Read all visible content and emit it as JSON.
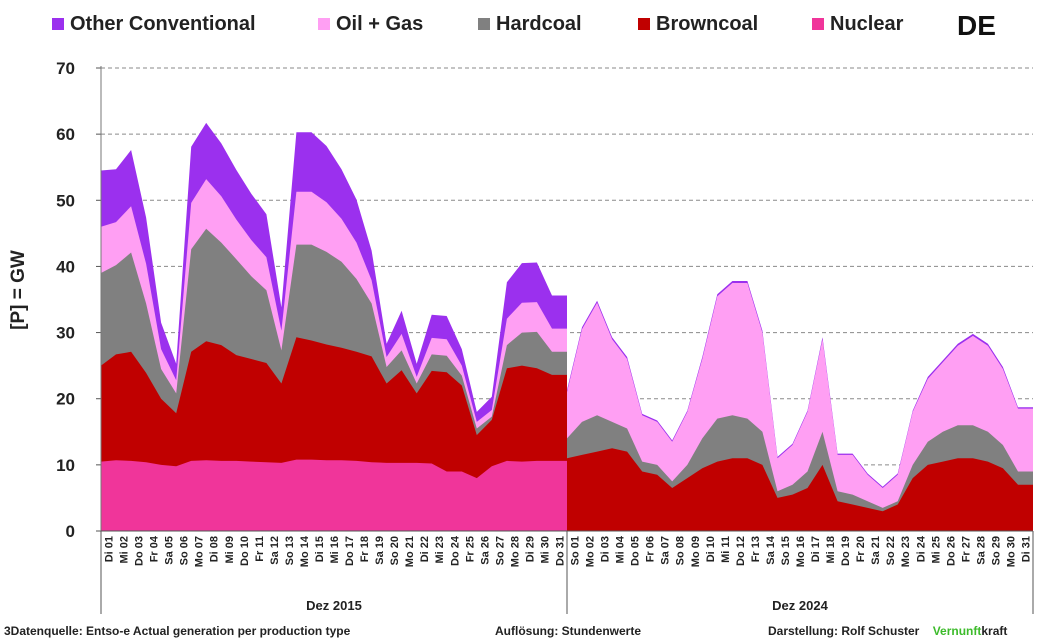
{
  "region": "DE",
  "footer": {
    "source": "3Datenquelle: Entso-e  Actual generation per production type",
    "resolution": "Auflösung: Stundenwerte",
    "credit_prefix": "Darstellung:  Rolf Schuster",
    "brand_green": "Vernunft",
    "brand_black": "kraft"
  },
  "chart_data": {
    "type": "area",
    "stacked": true,
    "title": "",
    "xlabel": "",
    "ylabel": "[P] =  GW",
    "ylim": [
      0,
      70
    ],
    "yticks": [
      0,
      10,
      20,
      30,
      40,
      50,
      60,
      70
    ],
    "grid": "horizontal dashed",
    "legend_position": "top",
    "groups": [
      {
        "label": "Dez 2015",
        "days": [
          "Di 01",
          "Mi 02",
          "Do 03",
          "Fr 04",
          "Sa 05",
          "So 06",
          "Mo 07",
          "Di 08",
          "Mi 09",
          "Do 10",
          "Fr 11",
          "Sa 12",
          "So 13",
          "Mo 14",
          "Di 15",
          "Mi 16",
          "Do 17",
          "Fr 18",
          "Sa 19",
          "So 20",
          "Mo 21",
          "Di 22",
          "Mi 23",
          "Do 24",
          "Fr 25",
          "Sa 26",
          "So 27",
          "Mo 28",
          "Di 29",
          "Mi 30",
          "Do 31"
        ],
        "series": [
          {
            "name": "Nuclear",
            "color": "#f0359a",
            "values": [
              10.5,
              10.7,
              10.6,
              10.4,
              10.0,
              9.8,
              10.6,
              10.7,
              10.6,
              10.6,
              10.5,
              10.4,
              10.3,
              10.8,
              10.8,
              10.7,
              10.7,
              10.6,
              10.4,
              10.3,
              10.3,
              10.3,
              10.2,
              9.0,
              9.0,
              8.0,
              9.8,
              10.6,
              10.5,
              10.6,
              10.6
            ]
          },
          {
            "name": "Browncoal",
            "color": "#c00000",
            "values": [
              14.5,
              16.0,
              16.5,
              13.5,
              10.0,
              8.0,
              16.5,
              18.0,
              17.5,
              16.0,
              15.5,
              15.0,
              12.0,
              18.5,
              18.0,
              17.5,
              17.0,
              16.5,
              16.0,
              12.0,
              14.0,
              10.5,
              14.0,
              15.0,
              13.0,
              6.5,
              7.0,
              14.0,
              14.5,
              14.0,
              13.0
            ]
          },
          {
            "name": "Hardcoal",
            "color": "#808080",
            "values": [
              14.0,
              13.5,
              15.0,
              10.5,
              4.5,
              3.0,
              15.5,
              17.0,
              15.5,
              14.5,
              12.5,
              11.0,
              5.0,
              14.0,
              14.5,
              14.0,
              13.0,
              11.0,
              8.0,
              2.5,
              3.0,
              1.5,
              2.5,
              2.5,
              1.5,
              1.0,
              0.5,
              3.5,
              5.0,
              5.5,
              3.5
            ]
          },
          {
            "name": "Oil + Gas",
            "color": "#ff9ff3",
            "values": [
              7.0,
              6.5,
              7.0,
              6.0,
              3.0,
              2.0,
              7.0,
              7.5,
              7.0,
              6.0,
              5.5,
              5.0,
              3.0,
              8.0,
              8.0,
              7.5,
              6.5,
              5.5,
              3.5,
              1.5,
              2.5,
              1.0,
              2.5,
              2.5,
              1.5,
              1.0,
              1.0,
              4.0,
              4.5,
              4.5,
              3.5
            ]
          },
          {
            "name": "Other Conventional",
            "color": "#9b30ee",
            "values": [
              8.5,
              8.0,
              8.5,
              7.0,
              4.0,
              2.5,
              8.5,
              8.5,
              8.0,
              7.5,
              7.0,
              6.5,
              3.5,
              9.0,
              9.0,
              8.5,
              7.5,
              6.5,
              4.5,
              2.0,
              3.5,
              2.0,
              3.5,
              3.5,
              2.5,
              1.5,
              2.0,
              5.5,
              6.0,
              6.0,
              5.0
            ]
          }
        ]
      },
      {
        "label": "Dez 2024",
        "days": [
          "So 01",
          "Mo 02",
          "Di 03",
          "Mi 04",
          "Do 05",
          "Fr 06",
          "Sa 07",
          "So 08",
          "Mo 09",
          "Di 10",
          "Mi 11",
          "Do 12",
          "Fr 13",
          "Sa 14",
          "So 15",
          "Mo 16",
          "Di 17",
          "Mi 18",
          "Do 19",
          "Fr 20",
          "Sa 21",
          "So 22",
          "Mo 23",
          "Di 24",
          "Mi 25",
          "Do 26",
          "Fr 27",
          "Sa 28",
          "So 29",
          "Mo 30",
          "Di 31"
        ],
        "series": [
          {
            "name": "Nuclear",
            "color": "#f0359a",
            "values": [
              0,
              0,
              0,
              0,
              0,
              0,
              0,
              0,
              0,
              0,
              0,
              0,
              0,
              0,
              0,
              0,
              0,
              0,
              0,
              0,
              0,
              0,
              0,
              0,
              0,
              0,
              0,
              0,
              0,
              0,
              0
            ]
          },
          {
            "name": "Browncoal",
            "color": "#c00000",
            "values": [
              11.0,
              11.5,
              12.0,
              12.5,
              12.0,
              9.0,
              8.5,
              6.5,
              8.0,
              9.5,
              10.5,
              11.0,
              11.0,
              10.0,
              5.0,
              5.5,
              6.5,
              10.0,
              4.5,
              4.0,
              3.5,
              3.0,
              4.0,
              8.0,
              10.0,
              10.5,
              11.0,
              11.0,
              10.5,
              9.5,
              7.0
            ]
          },
          {
            "name": "Hardcoal",
            "color": "#808080",
            "values": [
              3.0,
              5.0,
              5.5,
              4.0,
              3.5,
              1.5,
              1.5,
              1.0,
              2.0,
              4.5,
              6.5,
              6.5,
              6.0,
              5.0,
              1.0,
              1.5,
              2.5,
              5.0,
              1.5,
              1.5,
              1.0,
              0.5,
              0.5,
              2.0,
              3.5,
              4.5,
              5.0,
              5.0,
              4.5,
              3.5,
              2.0
            ]
          },
          {
            "name": "Oil + Gas",
            "color": "#ff9ff3",
            "values": [
              7.0,
              14.0,
              17.0,
              12.5,
              10.5,
              7.0,
              6.5,
              6.0,
              8.0,
              12.0,
              18.5,
              20.0,
              20.5,
              15.0,
              5.0,
              6.0,
              9.0,
              14.0,
              5.5,
              6.0,
              4.0,
              3.0,
              4.0,
              8.0,
              9.5,
              10.5,
              12.0,
              13.5,
              13.0,
              11.5,
              9.5
            ]
          },
          {
            "name": "Other Conventional",
            "color": "#9b30ee",
            "values": [
              0.3,
              0.3,
              0.3,
              0.3,
              0.3,
              0.2,
              0.2,
              0.2,
              0.2,
              0.3,
              0.3,
              0.3,
              0.3,
              0.3,
              0.2,
              0.2,
              0.2,
              0.3,
              0.2,
              0.2,
              0.2,
              0.2,
              0.2,
              0.2,
              0.3,
              0.3,
              0.3,
              0.3,
              0.3,
              0.3,
              0.2
            ]
          }
        ]
      }
    ]
  }
}
